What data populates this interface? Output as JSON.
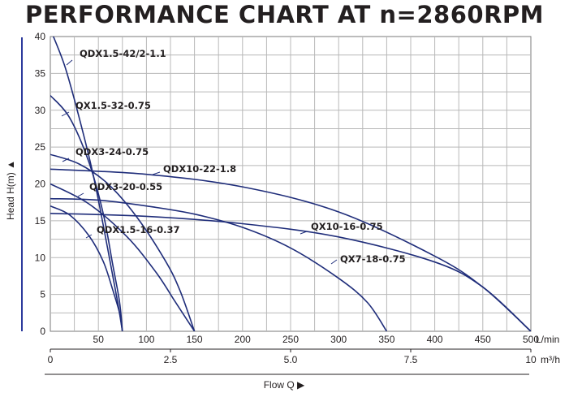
{
  "title": "PERFORMANCE CHART AT n=2860RPM",
  "chart_data": {
    "type": "line",
    "title": "PERFORMANCE CHART AT n=2860RPM",
    "ylabel": "Head H(m) ▲",
    "xlabel": "Flow Q ▶",
    "x_unit_primary": "L/min",
    "x_unit_secondary": "m³/h",
    "ylim": [
      0,
      40
    ],
    "xlim": [
      0,
      500
    ],
    "grid": true,
    "y_ticks": [
      "0",
      "5",
      "10",
      "15",
      "20",
      "25",
      "30",
      "35",
      "40"
    ],
    "x_ticks": [
      "50",
      "100",
      "150",
      "200",
      "250",
      "300",
      "350",
      "400",
      "450",
      "500"
    ],
    "x_secondary_ticks": [
      "0",
      "2.5",
      "5.0",
      "7.5",
      "10"
    ],
    "x_secondary_values": [
      0,
      2.5,
      5.0,
      7.5,
      10
    ],
    "series": [
      {
        "name": "QDX1.5-42/2-1.1",
        "line_color": "#1f2d7a",
        "x": [
          0,
          15,
          30,
          45,
          60,
          70,
          75
        ],
        "y": [
          41,
          36,
          29,
          21,
          11,
          4,
          0
        ]
      },
      {
        "name": "QX1.5-32-0.75",
        "line_color": "#1f2d7a",
        "x": [
          0,
          20,
          40,
          55,
          65,
          72,
          75
        ],
        "y": [
          32,
          29,
          23,
          16,
          9,
          4,
          0
        ]
      },
      {
        "name": "QDX3-24-0.75",
        "line_color": "#1f2d7a",
        "x": [
          0,
          30,
          60,
          90,
          120,
          135,
          150
        ],
        "y": [
          24,
          22.7,
          20,
          15.5,
          9.5,
          5.5,
          0
        ]
      },
      {
        "name": "QDX10-22-1.8",
        "line_color": "#1f2d7a",
        "x": [
          0,
          100,
          200,
          300,
          400,
          450,
          500
        ],
        "y": [
          22,
          21.3,
          19.6,
          16.2,
          10.2,
          6,
          0
        ]
      },
      {
        "name": "QDX3-20-0.55",
        "line_color": "#1f2d7a",
        "x": [
          0,
          40,
          80,
          110,
          130,
          145,
          150
        ],
        "y": [
          20,
          17.3,
          12.8,
          8,
          4,
          1,
          0
        ]
      },
      {
        "name": "QX7-18-0.75",
        "line_color": "#1f2d7a",
        "x": [
          0,
          50,
          100,
          150,
          200,
          250,
          300,
          330,
          350
        ],
        "y": [
          18,
          17.8,
          17,
          15.9,
          14.1,
          11.3,
          7.2,
          3.9,
          0
        ]
      },
      {
        "name": "QX10-16-0.75",
        "line_color": "#1f2d7a",
        "x": [
          0,
          100,
          200,
          300,
          400,
          450,
          500
        ],
        "y": [
          16,
          15.6,
          14.6,
          12.8,
          9.4,
          6,
          0
        ]
      },
      {
        "name": "QDX1.5-16-0.37",
        "line_color": "#1f2d7a",
        "x": [
          0,
          20,
          40,
          55,
          65,
          72,
          75
        ],
        "y": [
          17,
          15.8,
          13,
          9.5,
          5.6,
          2.5,
          0
        ]
      }
    ]
  }
}
